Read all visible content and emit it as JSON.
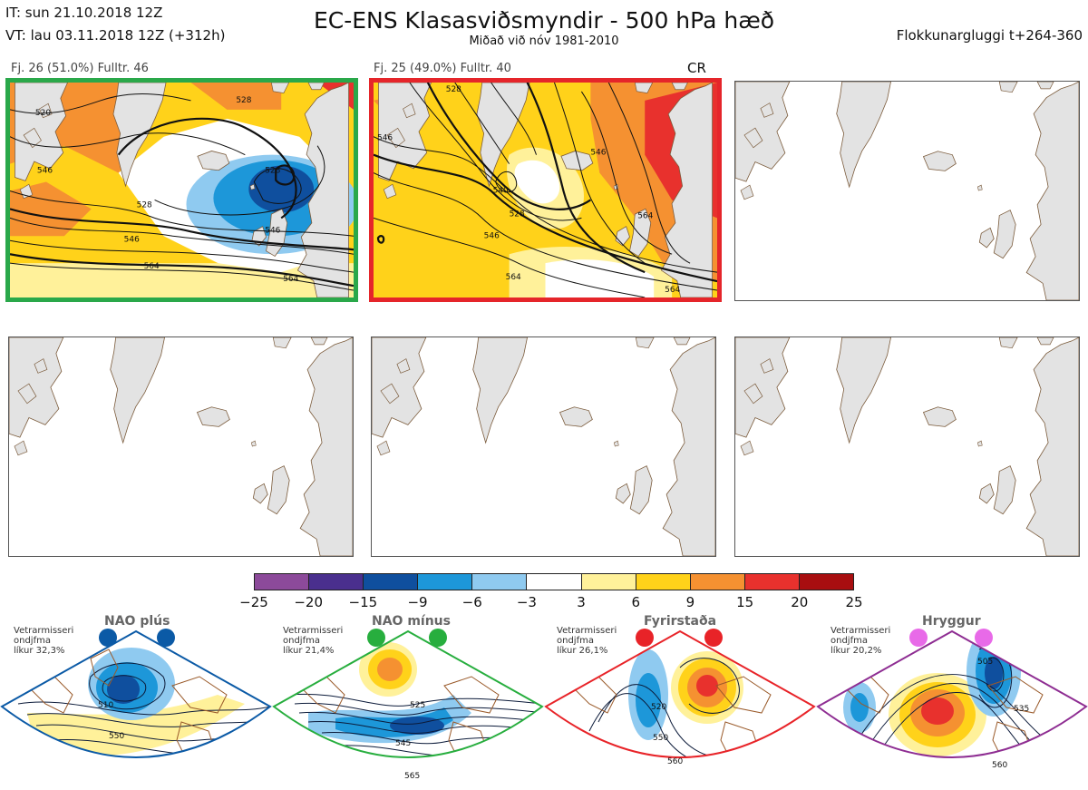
{
  "header": {
    "it_line": "IT: sun 21.10.2018 12Z",
    "vt_line": "VT: lau 03.11.2018 12Z  (+312h)",
    "title": "EC-ENS Klasasviðsmyndir - 500 hPa hæð",
    "subtitle": "Miðað við nóv 1981-2010",
    "window": "Flokkunargluggi t+264-360"
  },
  "clusters": [
    {
      "label": "Fj. 26 (51.0%)   Fulltr. 46",
      "tag": "",
      "frame_color": "#2aa84a"
    },
    {
      "label": "Fj. 25 (49.0%)   Fulltr. 40",
      "tag": "CR",
      "frame_color": "#e5252a"
    }
  ],
  "contour_labels": {
    "cluster1": [
      "528",
      "546",
      "520",
      "528",
      "528",
      "546",
      "546",
      "564",
      "564"
    ],
    "cluster2": [
      "546",
      "528",
      "546",
      "540",
      "528",
      "546",
      "564",
      "564",
      "564"
    ]
  },
  "colorbar": {
    "ticks": [
      "−25",
      "−20",
      "−15",
      "−9",
      "−6",
      "−3",
      "3",
      "6",
      "9",
      "15",
      "20",
      "25"
    ],
    "colors": [
      "#8c4a9a",
      "#4a2f8e",
      "#0f4f9e",
      "#1d97d9",
      "#8fcaf0",
      "#ffffff",
      "#fff19a",
      "#ffd21a",
      "#f59131",
      "#e8312d",
      "#a80e10"
    ]
  },
  "regimes": [
    {
      "name": "NAO plús",
      "note": [
        "Vetrarmisseri",
        "ondjfma",
        "líkur 32,3%"
      ],
      "color": "#0b5aa6",
      "contours": [
        "510",
        "550"
      ]
    },
    {
      "name": "NAO mínus",
      "note": [
        "Vetrarmisseri",
        "ondjfma",
        "líkur 21,4%"
      ],
      "color": "#27ae3e",
      "contours": [
        "525",
        "545",
        "565"
      ]
    },
    {
      "name": "Fyrirstaða",
      "note": [
        "Vetrarmisseri",
        "ondjfma",
        "líkur 26,1%"
      ],
      "color": "#e82328",
      "contours": [
        "520",
        "550",
        "560"
      ]
    },
    {
      "name": "Hryggur",
      "note": [
        "Vetrarmisseri",
        "ondjfma",
        "líkur 20,2%"
      ],
      "color": "#8e2d92",
      "contours": [
        "505",
        "535",
        "560"
      ]
    }
  ],
  "palette": {
    "land": "#e3e3e3",
    "coast": "#7a5a3a",
    "green": "#2aa84a",
    "red": "#e5252a",
    "anomaly_neg_dark": "#0f4f9e",
    "anomaly_neg": "#1d97d9",
    "anomaly_neg_light": "#8fcaf0",
    "anomaly_pos_light": "#fff19a",
    "anomaly_pos": "#ffd21a",
    "anomaly_pos_med": "#f59131",
    "anomaly_pos_high": "#e8312d",
    "dot_magenta": "#e86ae8"
  }
}
